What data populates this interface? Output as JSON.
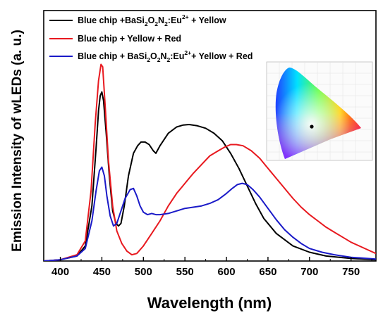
{
  "chart_data": {
    "type": "line",
    "title": "",
    "xlabel": "Wavelength (nm)",
    "ylabel": "Emission Intensity of wLEDs (a. u.)",
    "xlim": [
      380,
      780
    ],
    "ylim": [
      0,
      1.0
    ],
    "x_ticks": [
      400,
      450,
      500,
      550,
      600,
      650,
      700,
      750
    ],
    "grid": false,
    "legend_position": "top-left",
    "series": [
      {
        "name": "Blue chip +BaSi2O2N2:Eu2+ + Yellow",
        "color": "#000000",
        "points": [
          [
            380,
            0.0
          ],
          [
            400,
            0.005
          ],
          [
            420,
            0.02
          ],
          [
            430,
            0.06
          ],
          [
            438,
            0.22
          ],
          [
            443,
            0.45
          ],
          [
            446,
            0.6
          ],
          [
            448,
            0.66
          ],
          [
            450,
            0.675
          ],
          [
            452,
            0.64
          ],
          [
            455,
            0.52
          ],
          [
            459,
            0.34
          ],
          [
            463,
            0.2
          ],
          [
            467,
            0.15
          ],
          [
            470,
            0.14
          ],
          [
            473,
            0.15
          ],
          [
            477,
            0.22
          ],
          [
            482,
            0.34
          ],
          [
            488,
            0.43
          ],
          [
            493,
            0.46
          ],
          [
            497,
            0.475
          ],
          [
            502,
            0.475
          ],
          [
            507,
            0.465
          ],
          [
            512,
            0.44
          ],
          [
            515,
            0.43
          ],
          [
            520,
            0.46
          ],
          [
            530,
            0.51
          ],
          [
            540,
            0.535
          ],
          [
            548,
            0.543
          ],
          [
            555,
            0.545
          ],
          [
            565,
            0.54
          ],
          [
            575,
            0.53
          ],
          [
            585,
            0.51
          ],
          [
            595,
            0.48
          ],
          [
            605,
            0.43
          ],
          [
            615,
            0.37
          ],
          [
            625,
            0.3
          ],
          [
            635,
            0.23
          ],
          [
            645,
            0.17
          ],
          [
            660,
            0.11
          ],
          [
            680,
            0.06
          ],
          [
            700,
            0.035
          ],
          [
            720,
            0.02
          ],
          [
            750,
            0.01
          ],
          [
            780,
            0.005
          ]
        ]
      },
      {
        "name": "Blue chip + Yellow + Red",
        "color": "#e8191f",
        "points": [
          [
            380,
            0.0
          ],
          [
            400,
            0.005
          ],
          [
            420,
            0.025
          ],
          [
            430,
            0.08
          ],
          [
            437,
            0.28
          ],
          [
            442,
            0.55
          ],
          [
            446,
            0.72
          ],
          [
            449,
            0.785
          ],
          [
            451,
            0.775
          ],
          [
            454,
            0.62
          ],
          [
            458,
            0.4
          ],
          [
            463,
            0.22
          ],
          [
            468,
            0.12
          ],
          [
            474,
            0.07
          ],
          [
            480,
            0.04
          ],
          [
            486,
            0.025
          ],
          [
            492,
            0.03
          ],
          [
            500,
            0.06
          ],
          [
            510,
            0.11
          ],
          [
            520,
            0.16
          ],
          [
            530,
            0.22
          ],
          [
            540,
            0.27
          ],
          [
            550,
            0.31
          ],
          [
            560,
            0.35
          ],
          [
            570,
            0.385
          ],
          [
            580,
            0.42
          ],
          [
            590,
            0.44
          ],
          [
            598,
            0.455
          ],
          [
            605,
            0.465
          ],
          [
            612,
            0.465
          ],
          [
            620,
            0.46
          ],
          [
            630,
            0.44
          ],
          [
            640,
            0.41
          ],
          [
            650,
            0.37
          ],
          [
            660,
            0.33
          ],
          [
            670,
            0.29
          ],
          [
            680,
            0.25
          ],
          [
            690,
            0.215
          ],
          [
            700,
            0.185
          ],
          [
            710,
            0.16
          ],
          [
            720,
            0.135
          ],
          [
            730,
            0.115
          ],
          [
            740,
            0.095
          ],
          [
            750,
            0.075
          ],
          [
            760,
            0.06
          ],
          [
            770,
            0.045
          ],
          [
            780,
            0.03
          ]
        ]
      },
      {
        "name": "Blue chip + BaSi2O2N2:Eu2+ + Yellow + Red",
        "color": "#1a1ac8",
        "points": [
          [
            380,
            0.0
          ],
          [
            400,
            0.005
          ],
          [
            420,
            0.02
          ],
          [
            430,
            0.05
          ],
          [
            438,
            0.16
          ],
          [
            443,
            0.28
          ],
          [
            447,
            0.36
          ],
          [
            450,
            0.375
          ],
          [
            453,
            0.34
          ],
          [
            456,
            0.26
          ],
          [
            460,
            0.18
          ],
          [
            464,
            0.14
          ],
          [
            468,
            0.15
          ],
          [
            472,
            0.19
          ],
          [
            478,
            0.25
          ],
          [
            484,
            0.285
          ],
          [
            488,
            0.29
          ],
          [
            492,
            0.26
          ],
          [
            496,
            0.22
          ],
          [
            500,
            0.195
          ],
          [
            505,
            0.185
          ],
          [
            510,
            0.19
          ],
          [
            515,
            0.185
          ],
          [
            520,
            0.185
          ],
          [
            530,
            0.19
          ],
          [
            540,
            0.2
          ],
          [
            550,
            0.21
          ],
          [
            560,
            0.215
          ],
          [
            570,
            0.22
          ],
          [
            580,
            0.23
          ],
          [
            590,
            0.245
          ],
          [
            600,
            0.27
          ],
          [
            607,
            0.29
          ],
          [
            613,
            0.305
          ],
          [
            619,
            0.31
          ],
          [
            625,
            0.305
          ],
          [
            632,
            0.285
          ],
          [
            640,
            0.255
          ],
          [
            650,
            0.21
          ],
          [
            660,
            0.165
          ],
          [
            670,
            0.125
          ],
          [
            680,
            0.095
          ],
          [
            690,
            0.07
          ],
          [
            700,
            0.05
          ],
          [
            715,
            0.035
          ],
          [
            730,
            0.025
          ],
          [
            750,
            0.015
          ],
          [
            780,
            0.008
          ]
        ]
      }
    ]
  },
  "legend": {
    "items": [
      {
        "color": "#000000",
        "pre": "Blue chip +BaSi",
        "s1": "2",
        "mid1": "O",
        "s2": "2",
        "mid2": "N",
        "s3": "2",
        "mid3": ":Eu",
        "sup": "2+",
        "post": " + Yellow"
      },
      {
        "color": "#e8191f",
        "pre": "Blue chip + Yellow + Red"
      },
      {
        "color": "#1a1ac8",
        "pre": "Blue chip + BaSi",
        "s1": "2",
        "mid1": "O",
        "s2": "2",
        "mid2": "N",
        "s3": "2",
        "mid3": ":Eu",
        "sup": "2+",
        "post": "+ Yellow + Red"
      }
    ]
  },
  "inset": {
    "description_icon": "cie-chromaticity-diagram",
    "point_color": "#000000"
  }
}
